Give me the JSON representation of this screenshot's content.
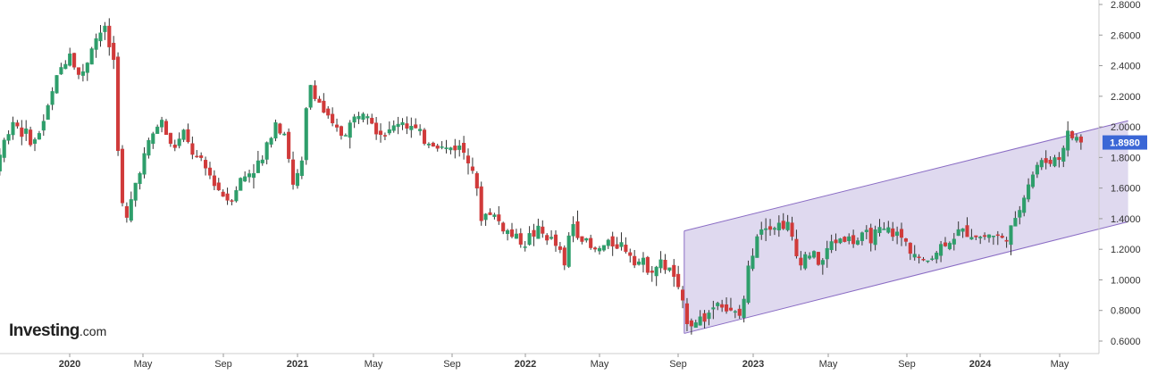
{
  "logo": {
    "brand": "Investing",
    "suffix": ".com"
  },
  "colors": {
    "up": "#2e9e6b",
    "down": "#d03a3a",
    "wick": "#333333",
    "channel_fill": "#d9d2ec",
    "channel_line": "#8a6cc4",
    "price_tag": "#3b67d6",
    "grid": "#e6e6e6"
  },
  "chart_data": {
    "type": "candlestick",
    "title": "",
    "xlabel": "",
    "ylabel": "",
    "ylim": [
      0.6,
      2.8
    ],
    "yticks": [
      "0.6000",
      "0.8000",
      "1.0000",
      "1.2000",
      "1.4000",
      "1.6000",
      "1.8000",
      "2.0000",
      "2.2000",
      "2.4000",
      "2.6000",
      "2.8000"
    ],
    "xticks": [
      {
        "label": "2020",
        "bold": true
      },
      {
        "label": "May",
        "bold": false
      },
      {
        "label": "Sep",
        "bold": false
      },
      {
        "label": "2021",
        "bold": true
      },
      {
        "label": "May",
        "bold": false
      },
      {
        "label": "Sep",
        "bold": false
      },
      {
        "label": "2022",
        "bold": true
      },
      {
        "label": "May",
        "bold": false
      },
      {
        "label": "Sep",
        "bold": false
      },
      {
        "label": "2023",
        "bold": true
      },
      {
        "label": "May",
        "bold": false
      },
      {
        "label": "Sep",
        "bold": false
      },
      {
        "label": "2024",
        "bold": true
      },
      {
        "label": "May",
        "bold": false
      }
    ],
    "last_price": "1.8980",
    "channel": {
      "lower": [
        [
          2022.7,
          0.65
        ],
        [
          2024.65,
          1.38
        ]
      ],
      "upper": [
        [
          2022.7,
          1.32
        ],
        [
          2024.65,
          2.04
        ]
      ]
    },
    "close_path": [
      [
        2019.5,
        1.66
      ],
      [
        2019.55,
        1.5
      ],
      [
        2019.6,
        1.6
      ],
      [
        2019.65,
        1.63
      ],
      [
        2019.7,
        1.85
      ],
      [
        2019.75,
        2.05
      ],
      [
        2019.8,
        1.95
      ],
      [
        2019.85,
        1.9
      ],
      [
        2019.9,
        2.1
      ],
      [
        2019.95,
        2.35
      ],
      [
        2020.0,
        2.5
      ],
      [
        2020.05,
        2.3
      ],
      [
        2020.1,
        2.55
      ],
      [
        2020.15,
        2.65
      ],
      [
        2020.2,
        2.4
      ],
      [
        2020.22,
        1.55
      ],
      [
        2020.25,
        1.38
      ],
      [
        2020.3,
        1.7
      ],
      [
        2020.35,
        1.9
      ],
      [
        2020.4,
        2.05
      ],
      [
        2020.45,
        1.85
      ],
      [
        2020.5,
        1.95
      ],
      [
        2020.55,
        1.8
      ],
      [
        2020.6,
        1.72
      ],
      [
        2020.65,
        1.6
      ],
      [
        2020.7,
        1.52
      ],
      [
        2020.75,
        1.65
      ],
      [
        2020.8,
        1.72
      ],
      [
        2020.85,
        1.78
      ],
      [
        2020.9,
        2.05
      ],
      [
        2020.95,
        1.95
      ],
      [
        2020.98,
        1.6
      ],
      [
        2021.02,
        1.75
      ],
      [
        2021.05,
        2.3
      ],
      [
        2021.1,
        2.15
      ],
      [
        2021.15,
        2.0
      ],
      [
        2021.2,
        1.95
      ],
      [
        2021.25,
        2.05
      ],
      [
        2021.3,
        2.15
      ],
      [
        2021.35,
        1.98
      ],
      [
        2021.4,
        1.95
      ],
      [
        2021.45,
        2.05
      ],
      [
        2021.5,
        2.0
      ],
      [
        2021.55,
        1.92
      ],
      [
        2021.6,
        1.9
      ],
      [
        2021.65,
        1.85
      ],
      [
        2021.7,
        1.88
      ],
      [
        2021.75,
        1.82
      ],
      [
        2021.78,
        1.7
      ],
      [
        2021.8,
        1.4
      ],
      [
        2021.85,
        1.45
      ],
      [
        2021.9,
        1.35
      ],
      [
        2021.95,
        1.28
      ],
      [
        2022.0,
        1.25
      ],
      [
        2022.05,
        1.32
      ],
      [
        2022.1,
        1.28
      ],
      [
        2022.15,
        1.2
      ],
      [
        2022.18,
        1.05
      ],
      [
        2022.2,
        1.4
      ],
      [
        2022.25,
        1.28
      ],
      [
        2022.3,
        1.18
      ],
      [
        2022.35,
        1.22
      ],
      [
        2022.4,
        1.25
      ],
      [
        2022.45,
        1.2
      ],
      [
        2022.5,
        1.12
      ],
      [
        2022.55,
        1.08
      ],
      [
        2022.6,
        1.1
      ],
      [
        2022.65,
        1.05
      ],
      [
        2022.68,
        0.88
      ],
      [
        2022.72,
        0.72
      ],
      [
        2022.8,
        0.76
      ],
      [
        2022.85,
        0.88
      ],
      [
        2022.9,
        0.78
      ],
      [
        2022.95,
        0.76
      ],
      [
        2022.98,
        1.05
      ],
      [
        2023.02,
        1.32
      ],
      [
        2023.06,
        1.38
      ],
      [
        2023.1,
        1.35
      ],
      [
        2023.15,
        1.38
      ],
      [
        2023.2,
        1.12
      ],
      [
        2023.25,
        1.18
      ],
      [
        2023.3,
        1.1
      ],
      [
        2023.35,
        1.25
      ],
      [
        2023.4,
        1.28
      ],
      [
        2023.45,
        1.25
      ],
      [
        2023.5,
        1.28
      ],
      [
        2023.55,
        1.3
      ],
      [
        2023.6,
        1.32
      ],
      [
        2023.65,
        1.28
      ],
      [
        2023.7,
        1.2
      ],
      [
        2023.75,
        1.1
      ],
      [
        2023.8,
        1.18
      ],
      [
        2023.85,
        1.25
      ],
      [
        2023.9,
        1.3
      ],
      [
        2023.95,
        1.32
      ],
      [
        2024.0,
        1.28
      ],
      [
        2024.05,
        1.3
      ],
      [
        2024.1,
        1.26
      ],
      [
        2024.15,
        1.35
      ],
      [
        2024.2,
        1.6
      ],
      [
        2024.25,
        1.75
      ],
      [
        2024.3,
        1.78
      ],
      [
        2024.35,
        1.8
      ],
      [
        2024.38,
        1.95
      ],
      [
        2024.42,
        1.93
      ],
      [
        2024.45,
        1.9
      ]
    ]
  }
}
